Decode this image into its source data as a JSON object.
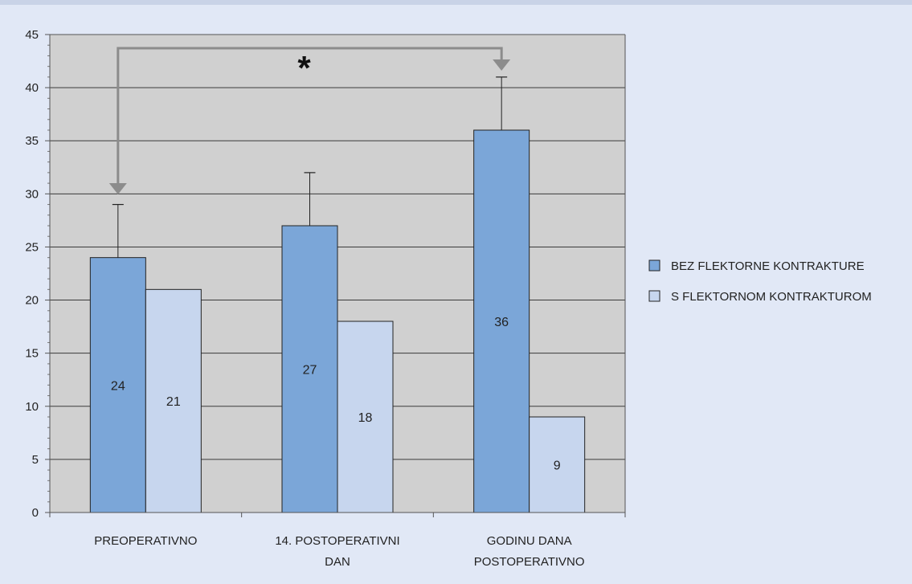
{
  "chart_data": {
    "type": "bar",
    "categories": [
      [
        "PREOPERATIVNO"
      ],
      [
        "14. POSTOPERATIVNI",
        "DAN"
      ],
      [
        "GODINU DANA",
        "POSTOPERATIVNO"
      ]
    ],
    "series": [
      {
        "name": "BEZ FLEKTORNE KONTRAKTURE",
        "values": [
          24,
          27,
          36
        ],
        "error_plus": [
          5,
          5,
          5
        ],
        "color": "#7ba6d8",
        "data_labels": [
          "24",
          "27",
          "36"
        ]
      },
      {
        "name": "S FLEKTORNOM KONTRAKTUROM",
        "values": [
          21,
          18,
          9
        ],
        "color": "#c7d6ee",
        "data_labels": [
          "21",
          "18",
          "9"
        ]
      }
    ],
    "ylim": [
      0,
      45
    ],
    "yticks": [
      "0",
      "5",
      "10",
      "15",
      "20",
      "25",
      "30",
      "35",
      "40",
      "45"
    ],
    "grid": true,
    "legend_position": "right",
    "annotation": {
      "symbol": "*",
      "connects": [
        "PREOPERATIVNO",
        "GODINU DANA POSTOPERATIVNO"
      ],
      "series": "BEZ FLEKTORNE KONTRAKTURE"
    },
    "colors": {
      "plot_background": "#d0d0d0",
      "frame_background": "#e1e8f6",
      "bracket": "#8c8c8c"
    }
  }
}
